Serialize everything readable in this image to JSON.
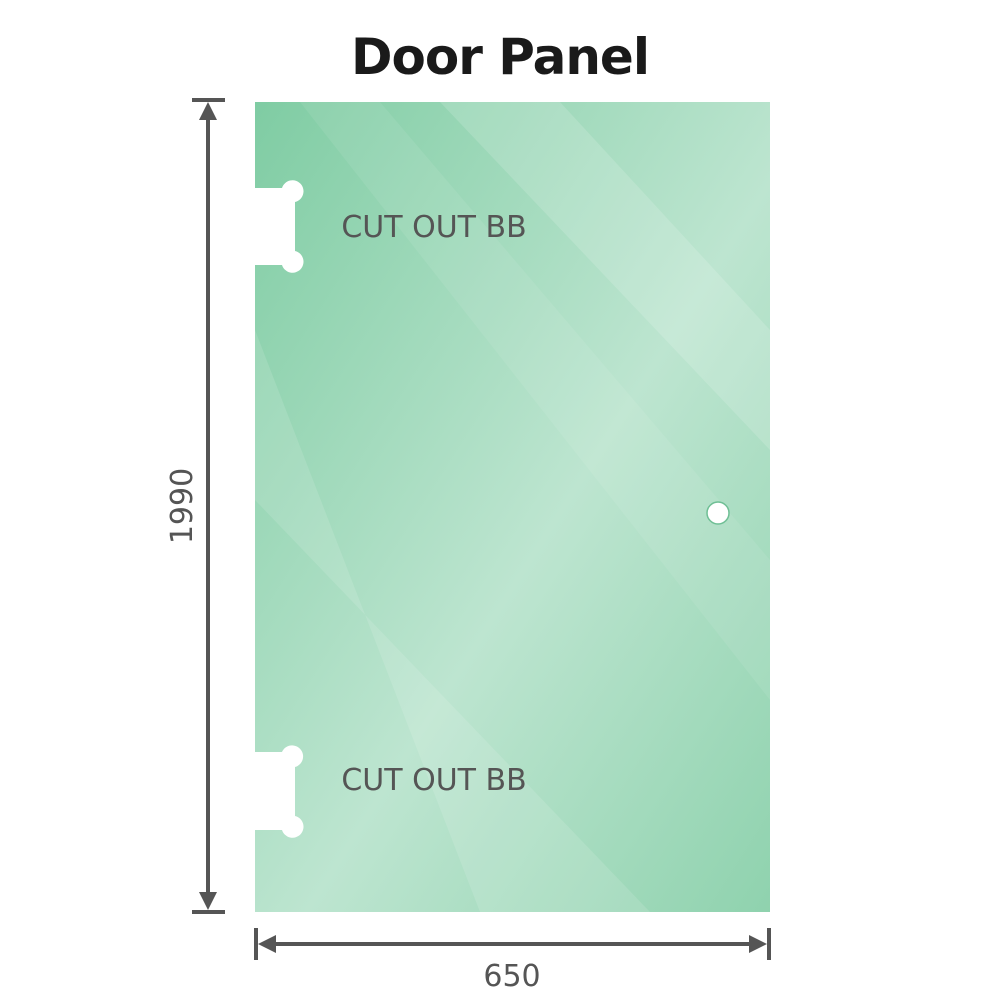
{
  "title": "Door Panel",
  "dimensions": {
    "height": "1990",
    "width": "650"
  },
  "cutouts": [
    {
      "label": "CUT OUT BB"
    },
    {
      "label": "CUT OUT BB"
    }
  ],
  "colors": {
    "glass": "#86cfa8",
    "glass_light": "#bfe6d2",
    "dimension_line": "#555555"
  }
}
